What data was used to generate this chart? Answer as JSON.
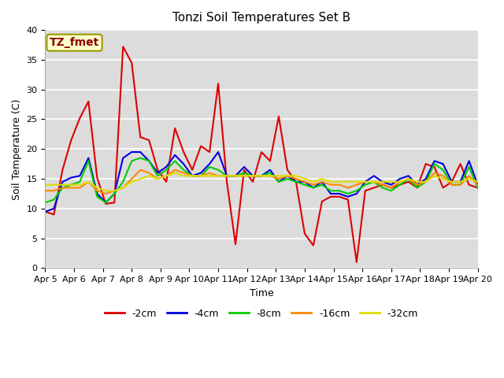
{
  "title": "Tonzi Soil Temperatures Set B",
  "xlabel": "Time",
  "ylabel": "Soil Temperature (C)",
  "ylim": [
    0,
    40
  ],
  "annotation_text": "TZ_fmet",
  "annotation_color": "#8b0000",
  "annotation_box_facecolor": "#ffffcc",
  "annotation_box_edgecolor": "#999900",
  "plot_bg_color": "#dcdcdc",
  "fig_bg_color": "#ffffff",
  "x_labels": [
    "Apr 5",
    "Apr 6",
    "Apr 7",
    "Apr 8",
    "Apr 9",
    "Apr 10",
    "Apr 11",
    "Apr 12",
    "Apr 13",
    "Apr 14",
    "Apr 15",
    "Apr 16",
    "Apr 17",
    "Apr 18",
    "Apr 19",
    "Apr 20"
  ],
  "yticks": [
    0,
    5,
    10,
    15,
    20,
    25,
    30,
    35,
    40
  ],
  "series": {
    "-2cm": {
      "color": "#dd0000",
      "data": [
        9.5,
        9.0,
        16.5,
        21.5,
        25.2,
        28.0,
        15.2,
        10.8,
        11.0,
        37.2,
        34.5,
        22.0,
        21.5,
        16.5,
        14.5,
        23.5,
        19.5,
        16.5,
        20.5,
        19.5,
        31.0,
        14.5,
        4.0,
        16.5,
        14.5,
        19.5,
        18.0,
        25.5,
        16.5,
        14.5,
        5.8,
        3.8,
        11.2,
        12.0,
        12.0,
        11.5,
        1.0,
        13.0,
        13.5,
        14.0,
        13.5,
        14.0,
        14.5,
        13.5,
        17.5,
        17.0,
        13.5,
        14.5,
        17.5,
        14.0,
        13.5
      ]
    },
    "-4cm": {
      "color": "#0000dd",
      "data": [
        9.5,
        10.0,
        14.5,
        15.2,
        15.5,
        18.5,
        12.5,
        11.0,
        12.5,
        18.5,
        19.5,
        19.5,
        18.0,
        16.0,
        17.0,
        19.0,
        17.5,
        15.5,
        16.0,
        17.5,
        19.5,
        15.5,
        15.5,
        17.0,
        15.5,
        15.5,
        16.5,
        14.5,
        15.5,
        14.5,
        14.5,
        13.5,
        14.5,
        12.5,
        12.5,
        12.0,
        12.5,
        14.5,
        15.5,
        14.5,
        14.0,
        15.0,
        15.5,
        14.0,
        15.0,
        18.0,
        17.5,
        14.5,
        14.5,
        18.0,
        14.0
      ]
    },
    "-8cm": {
      "color": "#00cc00",
      "data": [
        11.0,
        11.5,
        13.5,
        14.0,
        14.5,
        18.0,
        12.0,
        11.0,
        12.5,
        14.5,
        18.0,
        18.5,
        18.0,
        15.5,
        16.5,
        18.0,
        16.5,
        15.5,
        15.5,
        17.0,
        16.5,
        15.5,
        15.5,
        16.0,
        15.5,
        15.5,
        16.0,
        14.5,
        15.0,
        14.5,
        14.0,
        13.5,
        14.0,
        13.0,
        13.0,
        12.5,
        13.0,
        14.0,
        14.5,
        13.5,
        13.0,
        14.0,
        15.0,
        13.5,
        14.5,
        17.5,
        16.5,
        14.0,
        14.0,
        17.0,
        13.5
      ]
    },
    "-16cm": {
      "color": "#ff8800",
      "data": [
        13.0,
        13.0,
        13.5,
        13.5,
        13.5,
        14.5,
        13.0,
        12.5,
        13.0,
        13.5,
        15.0,
        16.5,
        16.0,
        15.0,
        15.5,
        16.5,
        16.0,
        15.5,
        15.5,
        16.0,
        15.5,
        15.5,
        15.5,
        15.5,
        15.5,
        15.5,
        15.5,
        15.0,
        15.5,
        15.0,
        14.5,
        14.0,
        14.5,
        14.0,
        14.0,
        13.5,
        14.0,
        14.5,
        14.5,
        14.0,
        13.5,
        14.5,
        15.0,
        14.0,
        14.5,
        16.0,
        15.5,
        14.0,
        14.0,
        15.5,
        14.0
      ]
    },
    "-32cm": {
      "color": "#dddd00",
      "data": [
        14.0,
        14.0,
        14.0,
        14.0,
        14.0,
        14.5,
        13.5,
        13.0,
        13.0,
        13.5,
        14.5,
        15.0,
        15.5,
        15.0,
        15.5,
        16.0,
        15.5,
        15.5,
        15.5,
        15.5,
        15.5,
        15.5,
        15.5,
        15.5,
        15.5,
        15.5,
        15.5,
        15.5,
        15.5,
        15.5,
        15.0,
        14.5,
        15.0,
        14.5,
        14.5,
        14.5,
        14.5,
        14.5,
        14.5,
        14.5,
        14.5,
        14.5,
        15.0,
        14.5,
        14.5,
        15.5,
        15.0,
        14.5,
        14.5,
        15.0,
        14.5
      ]
    }
  },
  "legend_order": [
    "-2cm",
    "-4cm",
    "-8cm",
    "-16cm",
    "-32cm"
  ],
  "title_fontsize": 11,
  "label_fontsize": 9,
  "tick_fontsize": 8,
  "linewidth": 1.5
}
